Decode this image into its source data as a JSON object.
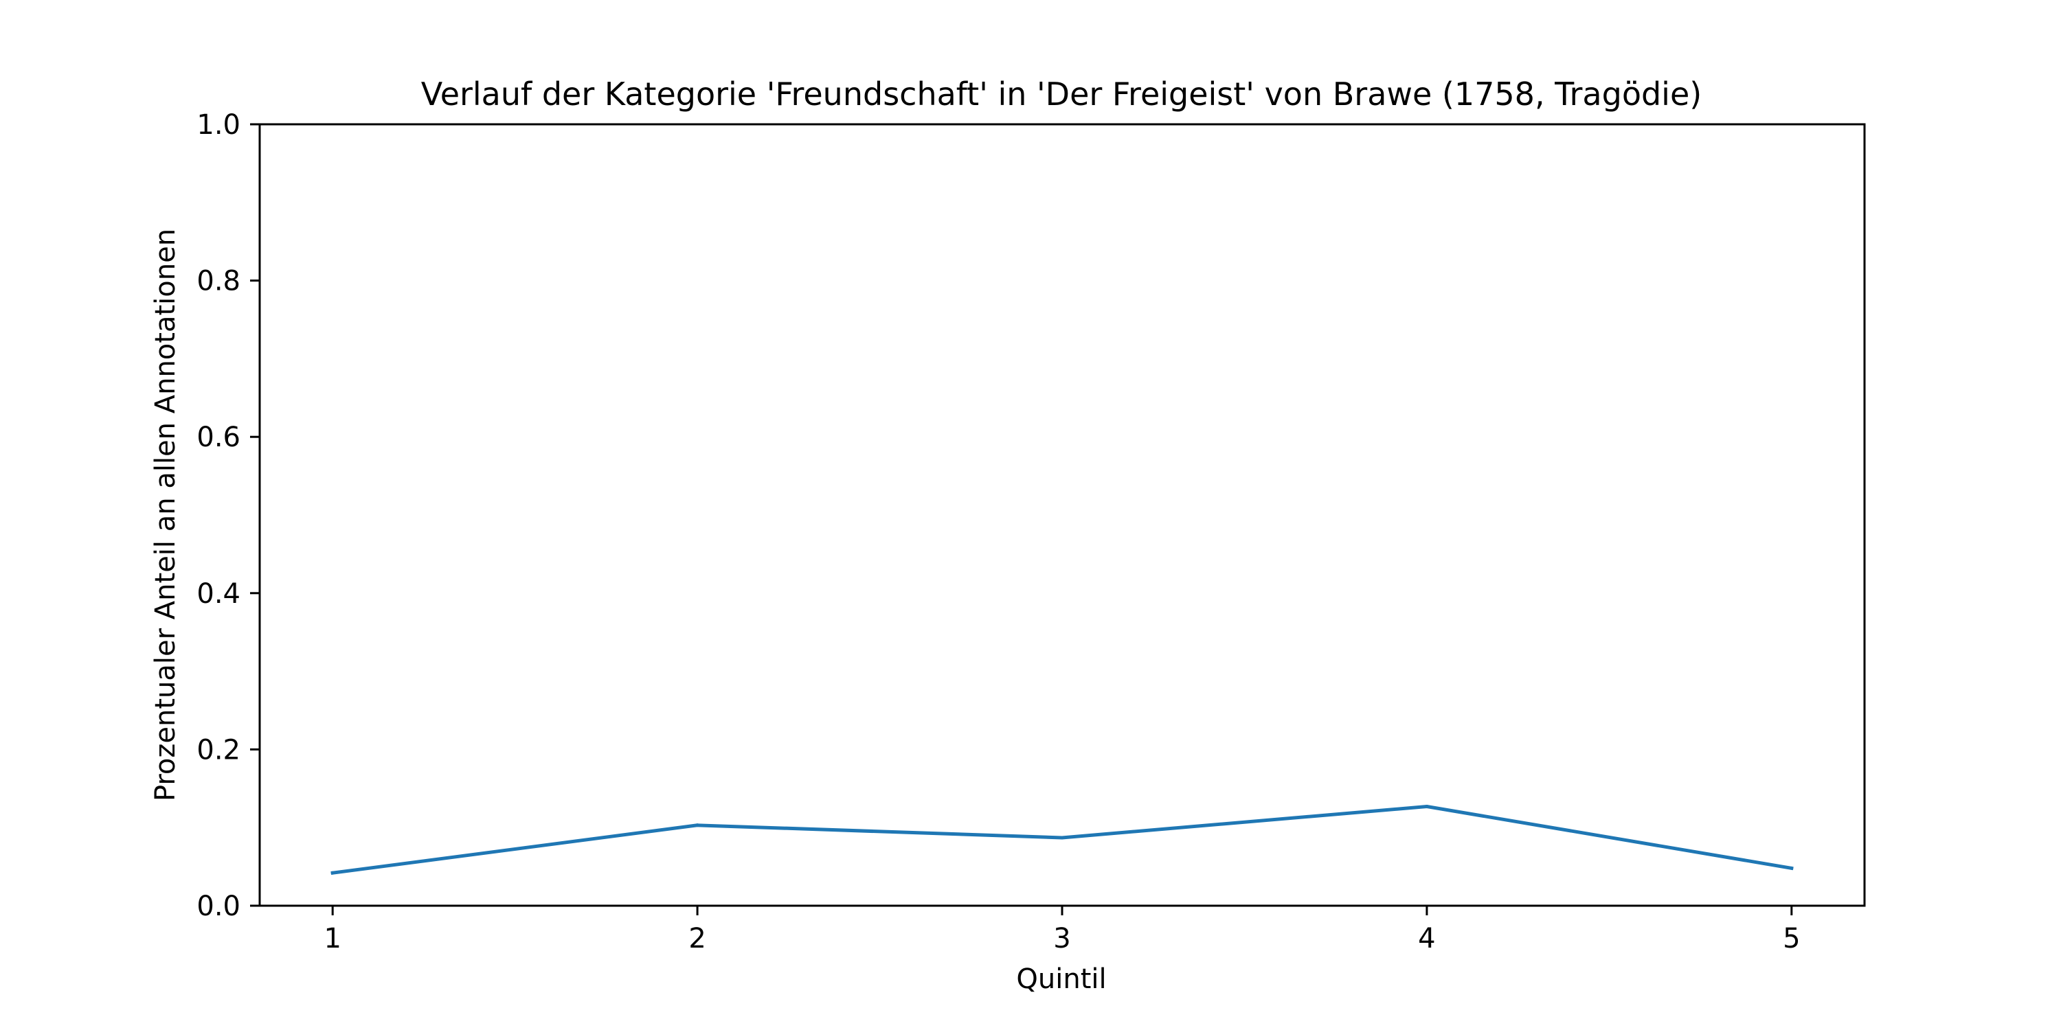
{
  "chart_data": {
    "type": "line",
    "title": "Verlauf der Kategorie 'Freundschaft' in 'Der Freigeist' von Brawe (1758, Tragödie)",
    "xlabel": "Quintil",
    "ylabel": "Prozentualer Anteil an allen Annotationen",
    "x": [
      1,
      2,
      3,
      4,
      5
    ],
    "x_tick_labels": [
      "1",
      "2",
      "3",
      "4",
      "5"
    ],
    "y_ticks": [
      0.0,
      0.2,
      0.4,
      0.6,
      0.8,
      1.0
    ],
    "y_tick_labels": [
      "0.0",
      "0.2",
      "0.4",
      "0.6",
      "0.8",
      "1.0"
    ],
    "xlim": [
      0.8,
      5.2
    ],
    "ylim": [
      0.0,
      1.0
    ],
    "grid": false,
    "legend": "none",
    "series": [
      {
        "color": "#1f77b4",
        "values": [
          0.042,
          0.103,
          0.087,
          0.127,
          0.048
        ]
      }
    ]
  }
}
